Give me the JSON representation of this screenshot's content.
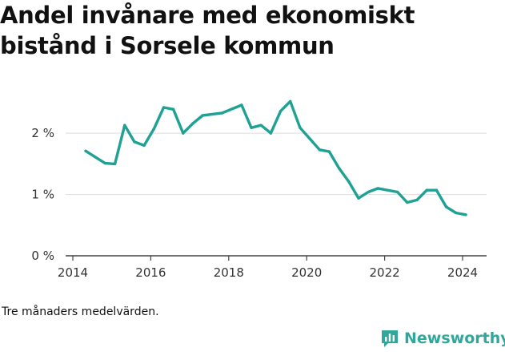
{
  "chart_data": {
    "type": "line",
    "title": "Andel invånare med ekonomiskt bistånd i Sorsele kommun",
    "xlabel": "",
    "ylabel": "",
    "x_ticks": [
      "2014",
      "2016",
      "2018",
      "2020",
      "2022",
      "2024"
    ],
    "y_ticks": [
      "0 %",
      "1 %",
      "2 %"
    ],
    "xlim": [
      2014,
      2024.6
    ],
    "ylim": [
      0,
      2.8
    ],
    "grid": true,
    "series": [
      {
        "color": "#1fa193",
        "points": [
          [
            2014.33,
            1.71
          ],
          [
            2014.58,
            1.61
          ],
          [
            2014.83,
            1.51
          ],
          [
            2015.08,
            1.5
          ],
          [
            2015.33,
            2.13
          ],
          [
            2015.58,
            1.86
          ],
          [
            2015.83,
            1.8
          ],
          [
            2016.08,
            2.07
          ],
          [
            2016.33,
            2.42
          ],
          [
            2016.58,
            2.39
          ],
          [
            2016.83,
            2.0
          ],
          [
            2017.08,
            2.16
          ],
          [
            2017.33,
            2.29
          ],
          [
            2017.83,
            2.33
          ],
          [
            2018.33,
            2.46
          ],
          [
            2018.58,
            2.09
          ],
          [
            2018.83,
            2.13
          ],
          [
            2019.08,
            2.0
          ],
          [
            2019.33,
            2.36
          ],
          [
            2019.58,
            2.52
          ],
          [
            2019.83,
            2.09
          ],
          [
            2020.08,
            1.91
          ],
          [
            2020.33,
            1.73
          ],
          [
            2020.58,
            1.7
          ],
          [
            2020.83,
            1.43
          ],
          [
            2021.08,
            1.21
          ],
          [
            2021.33,
            0.94
          ],
          [
            2021.58,
            1.04
          ],
          [
            2021.83,
            1.1
          ],
          [
            2022.33,
            1.04
          ],
          [
            2022.58,
            0.87
          ],
          [
            2022.83,
            0.91
          ],
          [
            2023.08,
            1.07
          ],
          [
            2023.33,
            1.07
          ],
          [
            2023.58,
            0.8
          ],
          [
            2023.83,
            0.7
          ],
          [
            2024.08,
            0.67
          ]
        ]
      }
    ]
  },
  "footer": {
    "note": "Tre månaders medelvärden.",
    "brand": "Newsworthy"
  },
  "colors": {
    "line": "#1fa193",
    "brand": "#2fa79a",
    "grid": "#dddddd"
  }
}
